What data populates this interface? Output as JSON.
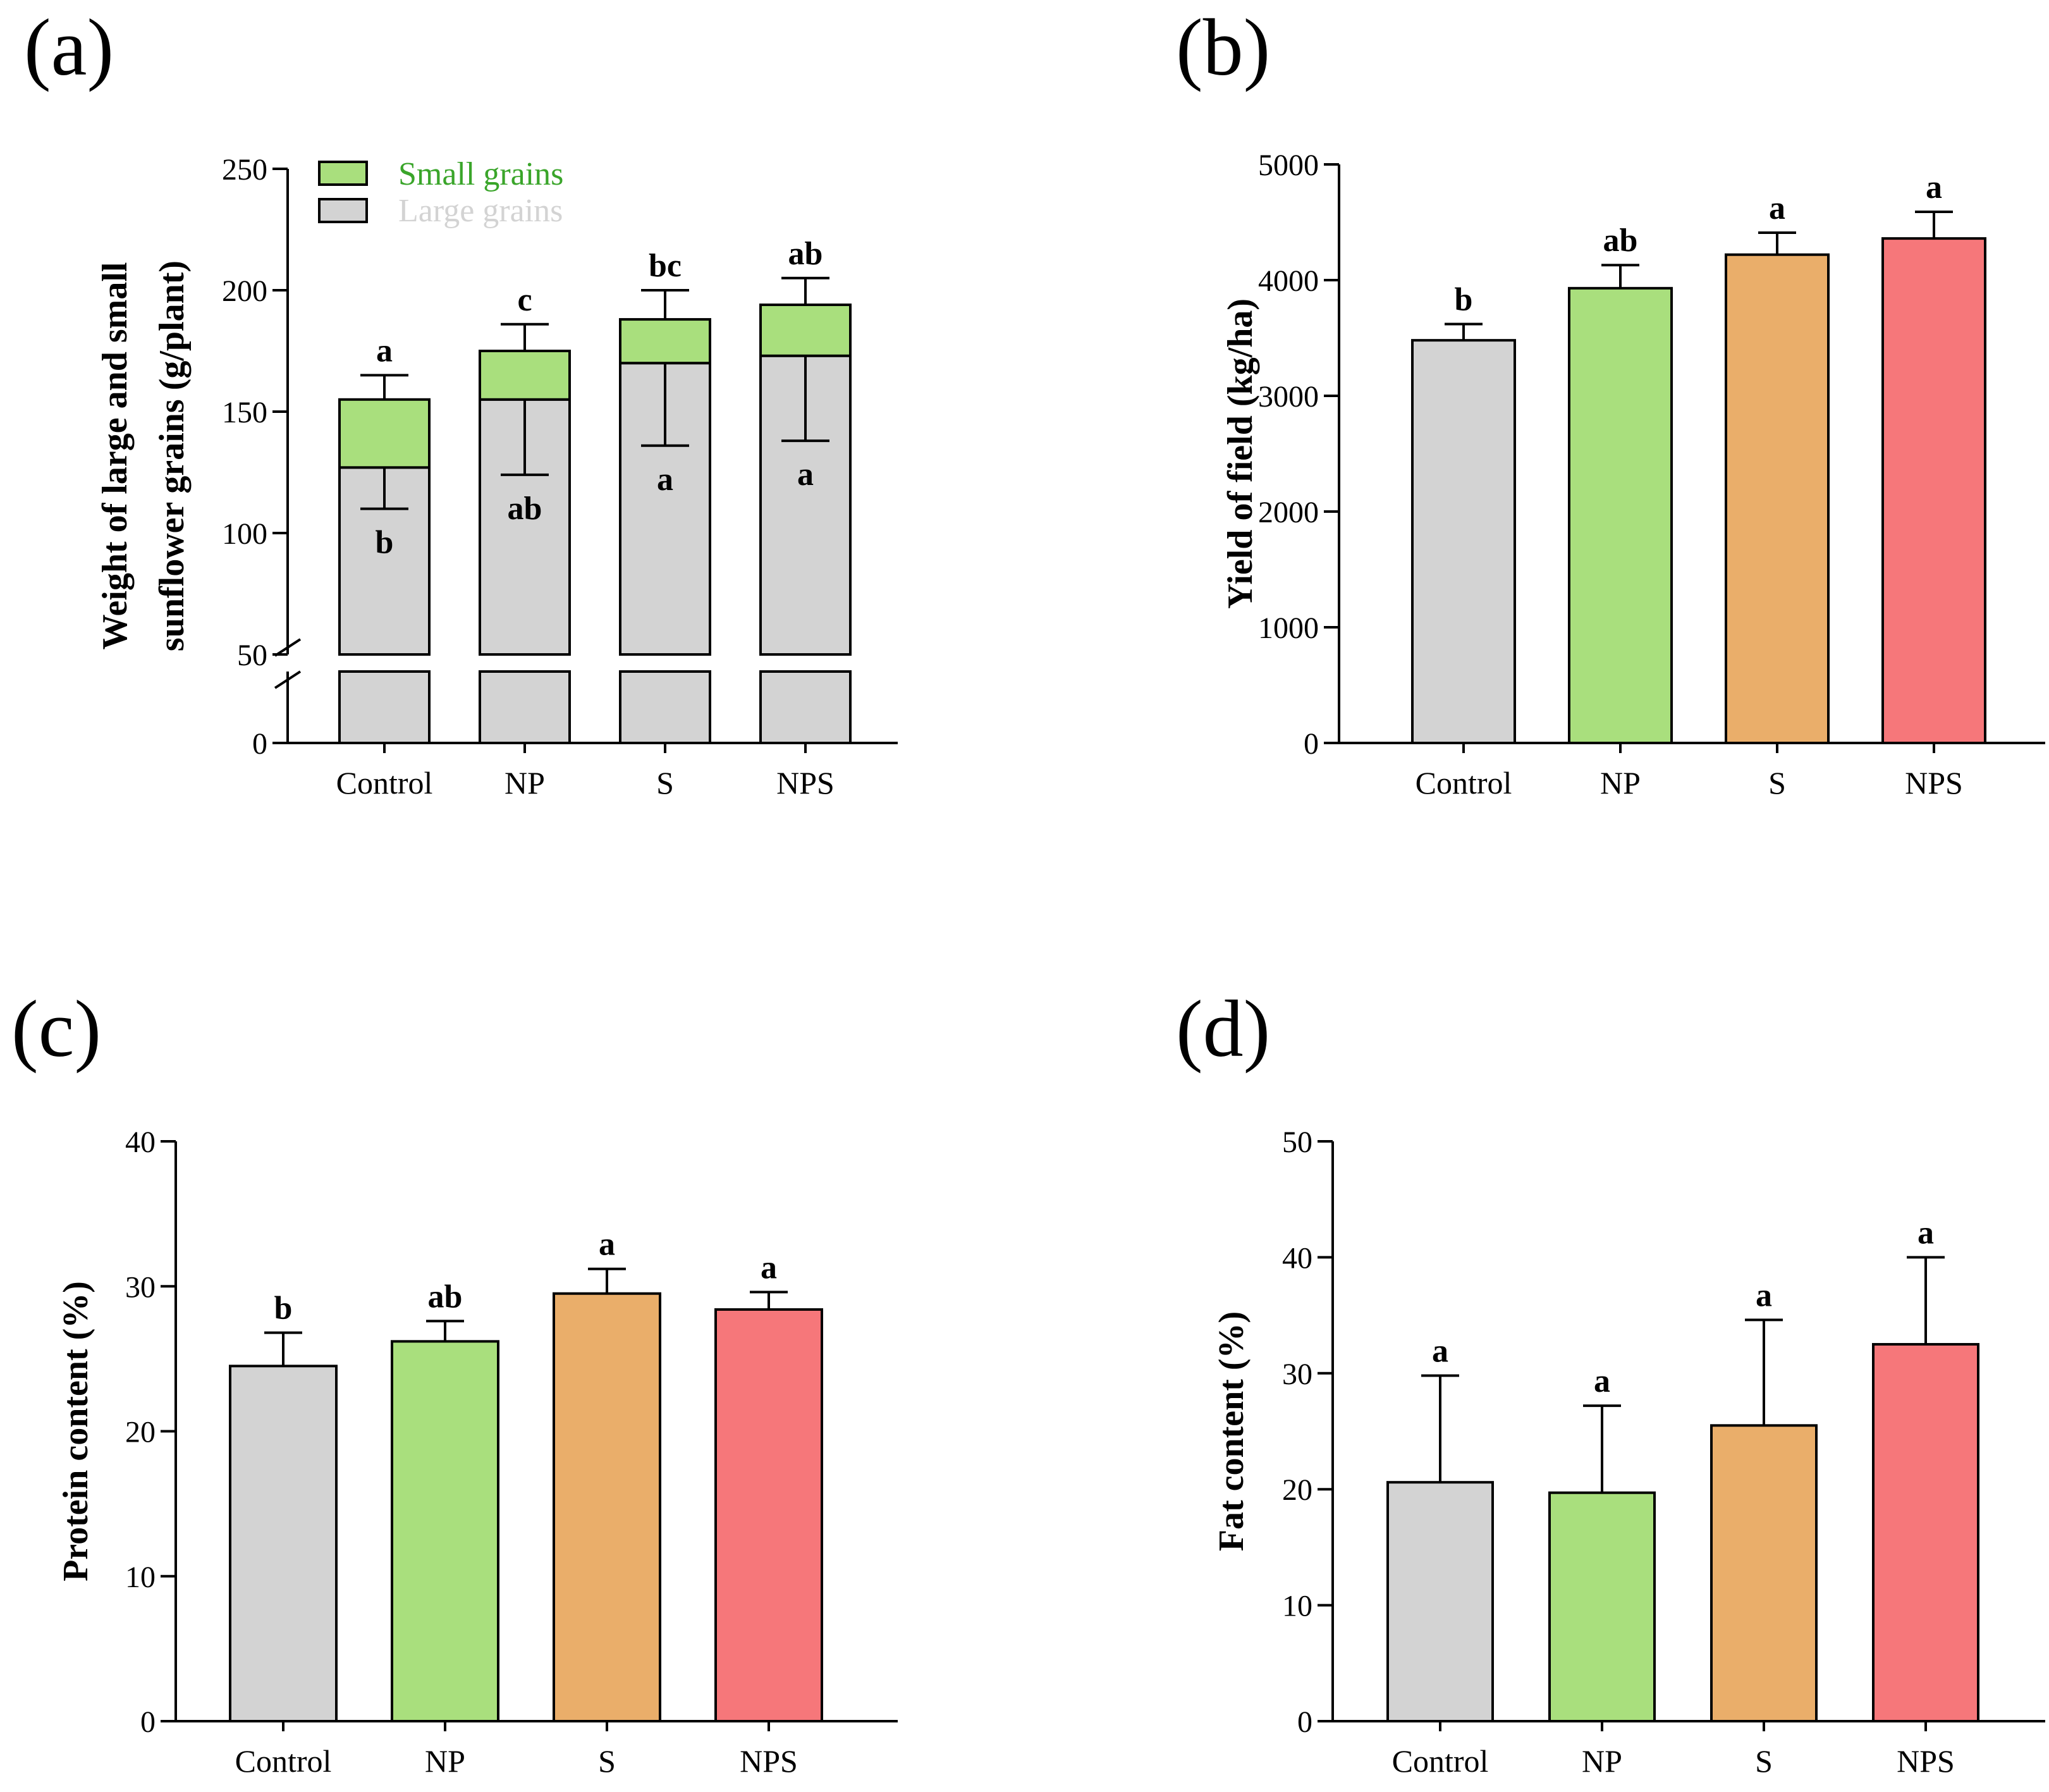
{
  "colors": {
    "Control": "#d3d3d3",
    "NP": "#a9df7d",
    "S": "#eaae6a",
    "NPS": "#f6777a",
    "small_grains": "#a9df7d",
    "large_grains": "#d3d3d3",
    "legend_small_text": "#3aa52a",
    "legend_large_text": "#d3d3d3"
  },
  "chart_data": [
    {
      "id": "a",
      "panel_label": "(a)",
      "type": "bar",
      "stacked": true,
      "categories": [
        "Control",
        "NP",
        "S",
        "NPS"
      ],
      "ylabel_line1": "Weight of large and small",
      "ylabel_line2": "sunflower grains (g/plant)",
      "ylim": [
        0,
        250
      ],
      "axis_break": [
        0,
        50
      ],
      "yticks": [
        0,
        50,
        100,
        150,
        200,
        250
      ],
      "legend": {
        "position": "top-left",
        "small_label": "Small grains",
        "large_label": "Large grains"
      },
      "series": [
        {
          "name": "Large grains",
          "values": [
            127,
            155,
            170,
            173
          ],
          "errors": [
            17,
            31,
            34,
            35
          ],
          "error_direction": "down",
          "letters": [
            "b",
            "ab",
            "a",
            "a"
          ]
        },
        {
          "name": "Small grains",
          "values": [
            28,
            20,
            18,
            21
          ],
          "totals": [
            155,
            175,
            188,
            194
          ],
          "errors": [
            10,
            11,
            12,
            11
          ],
          "error_direction": "up",
          "letters": [
            "a",
            "c",
            "bc",
            "ab"
          ]
        }
      ]
    },
    {
      "id": "b",
      "panel_label": "(b)",
      "type": "bar",
      "categories": [
        "Control",
        "NP",
        "S",
        "NPS"
      ],
      "ylabel": "Yield of field (kg/ha)",
      "ylim": [
        0,
        5000
      ],
      "yticks": [
        0,
        1000,
        2000,
        3000,
        4000,
        5000
      ],
      "values": [
        3480,
        3930,
        4220,
        4360
      ],
      "errors": [
        140,
        200,
        190,
        230
      ],
      "letters": [
        "b",
        "ab",
        "a",
        "a"
      ]
    },
    {
      "id": "c",
      "panel_label": "(c)",
      "type": "bar",
      "categories": [
        "Control",
        "NP",
        "S",
        "NPS"
      ],
      "ylabel": "Protein content (%)",
      "ylim": [
        0,
        40
      ],
      "yticks": [
        0,
        10,
        20,
        30,
        40
      ],
      "values": [
        24.5,
        26.2,
        29.5,
        28.4
      ],
      "errors": [
        2.3,
        1.4,
        1.7,
        1.2
      ],
      "letters": [
        "b",
        "ab",
        "a",
        "a"
      ]
    },
    {
      "id": "d",
      "panel_label": "(d)",
      "type": "bar",
      "categories": [
        "Control",
        "NP",
        "S",
        "NPS"
      ],
      "ylabel": "Fat content (%)",
      "ylim": [
        0,
        50
      ],
      "yticks": [
        0,
        10,
        20,
        30,
        40,
        50
      ],
      "values": [
        20.6,
        19.7,
        25.5,
        32.5
      ],
      "errors": [
        9.2,
        7.5,
        9.1,
        7.5
      ],
      "letters": [
        "a",
        "a",
        "a",
        "a"
      ]
    }
  ]
}
